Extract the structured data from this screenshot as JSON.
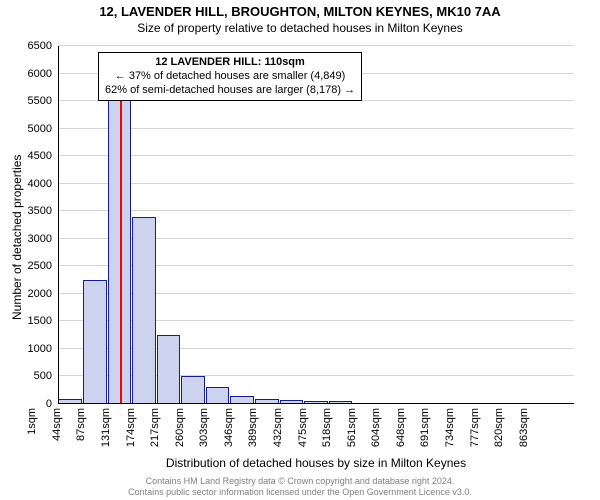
{
  "title_line1": "12, LAVENDER HILL, BROUGHTON, MILTON KEYNES, MK10 7AA",
  "title_line2": "Size of property relative to detached houses in Milton Keynes",
  "title_fontsize": 13,
  "subtitle_fontsize": 12,
  "ylabel": "Number of detached properties",
  "xlabel": "Distribution of detached houses by size in Milton Keynes",
  "axis_label_fontsize": 12,
  "tick_fontsize": 11,
  "plot": {
    "type": "histogram",
    "ylim": [
      0,
      6500
    ],
    "ytick_step": 500,
    "x_categories": [
      "1sqm",
      "44sqm",
      "87sqm",
      "131sqm",
      "174sqm",
      "217sqm",
      "260sqm",
      "303sqm",
      "346sqm",
      "389sqm",
      "432sqm",
      "475sqm",
      "518sqm",
      "561sqm",
      "604sqm",
      "648sqm",
      "691sqm",
      "734sqm",
      "777sqm",
      "820sqm",
      "863sqm"
    ],
    "bar_values": [
      100,
      2250,
      5600,
      3400,
      1250,
      500,
      300,
      150,
      100,
      80,
      60,
      50,
      0,
      0,
      0,
      0,
      0,
      0,
      0,
      0,
      0
    ],
    "bar_fill": "#cbd3ef",
    "bar_stroke": "#161c96",
    "grid_color": "#d6d6d6",
    "background": "#ffffff",
    "highlight_index": 2.53,
    "highlight_color": "#ff0000",
    "highlight_top_value": 6000
  },
  "annotation": {
    "line1": "12 LAVENDER HILL: 110sqm",
    "line2": "← 37% of detached houses are smaller (4,849)",
    "line3": "62% of semi-detached houses are larger (8,178) →",
    "fontsize": 11
  },
  "footer": {
    "line1": "Contains HM Land Registry data © Crown copyright and database right 2024.",
    "line2": "Contains public sector information licensed under the Open Government Licence v3.0.",
    "fontsize": 9,
    "color": "#808080"
  }
}
